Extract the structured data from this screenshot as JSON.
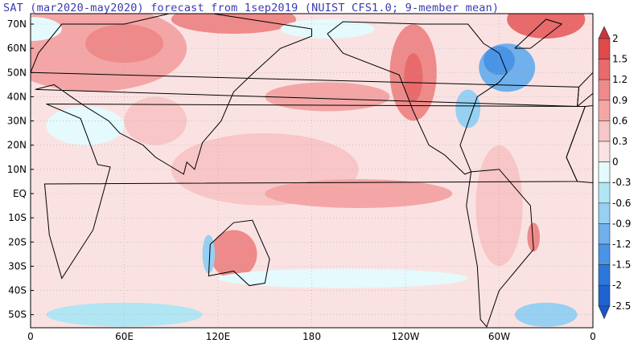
{
  "title": "SAT (mar2020-may2020) forecast from 1sep2019 (NUIST CFS1.0; 9-member mean)",
  "map": {
    "variable": "SAT anomaly",
    "lat_labels": [
      {
        "lat": 70,
        "label": "70N"
      },
      {
        "lat": 60,
        "label": "60N"
      },
      {
        "lat": 50,
        "label": "50N"
      },
      {
        "lat": 40,
        "label": "40N"
      },
      {
        "lat": 30,
        "label": "30N"
      },
      {
        "lat": 20,
        "label": "20N"
      },
      {
        "lat": 10,
        "label": "10N"
      },
      {
        "lat": 0,
        "label": "EQ"
      },
      {
        "lat": -10,
        "label": "10S"
      },
      {
        "lat": -20,
        "label": "20S"
      },
      {
        "lat": -30,
        "label": "30S"
      },
      {
        "lat": -40,
        "label": "40S"
      },
      {
        "lat": -50,
        "label": "50S"
      }
    ],
    "lon_labels": [
      {
        "lon": 0,
        "label": "0"
      },
      {
        "lon": 60,
        "label": "60E"
      },
      {
        "lon": 120,
        "label": "120E"
      },
      {
        "lon": 180,
        "label": "180"
      },
      {
        "lon": 240,
        "label": "120W"
      },
      {
        "lon": 300,
        "label": "60W"
      },
      {
        "lon": 360,
        "label": "0"
      }
    ]
  },
  "colorbar": {
    "labels": [
      "2",
      "1.5",
      "1.2",
      "0.9",
      "0.6",
      "0.3",
      "0",
      "-0.3",
      "-0.6",
      "-0.9",
      "-1.2",
      "-1.5",
      "-2",
      "-2.5"
    ],
    "colors": [
      "#c8363a",
      "#e04a4a",
      "#e86a6a",
      "#ef8a8a",
      "#f4a6a6",
      "#f8c6c6",
      "#fbe2e2",
      "#e4fafc",
      "#b0e6f4",
      "#96d0f2",
      "#70b0ec",
      "#4a94e6",
      "#2a78dc",
      "#1f62d0",
      "#1a56c8"
    ]
  }
}
